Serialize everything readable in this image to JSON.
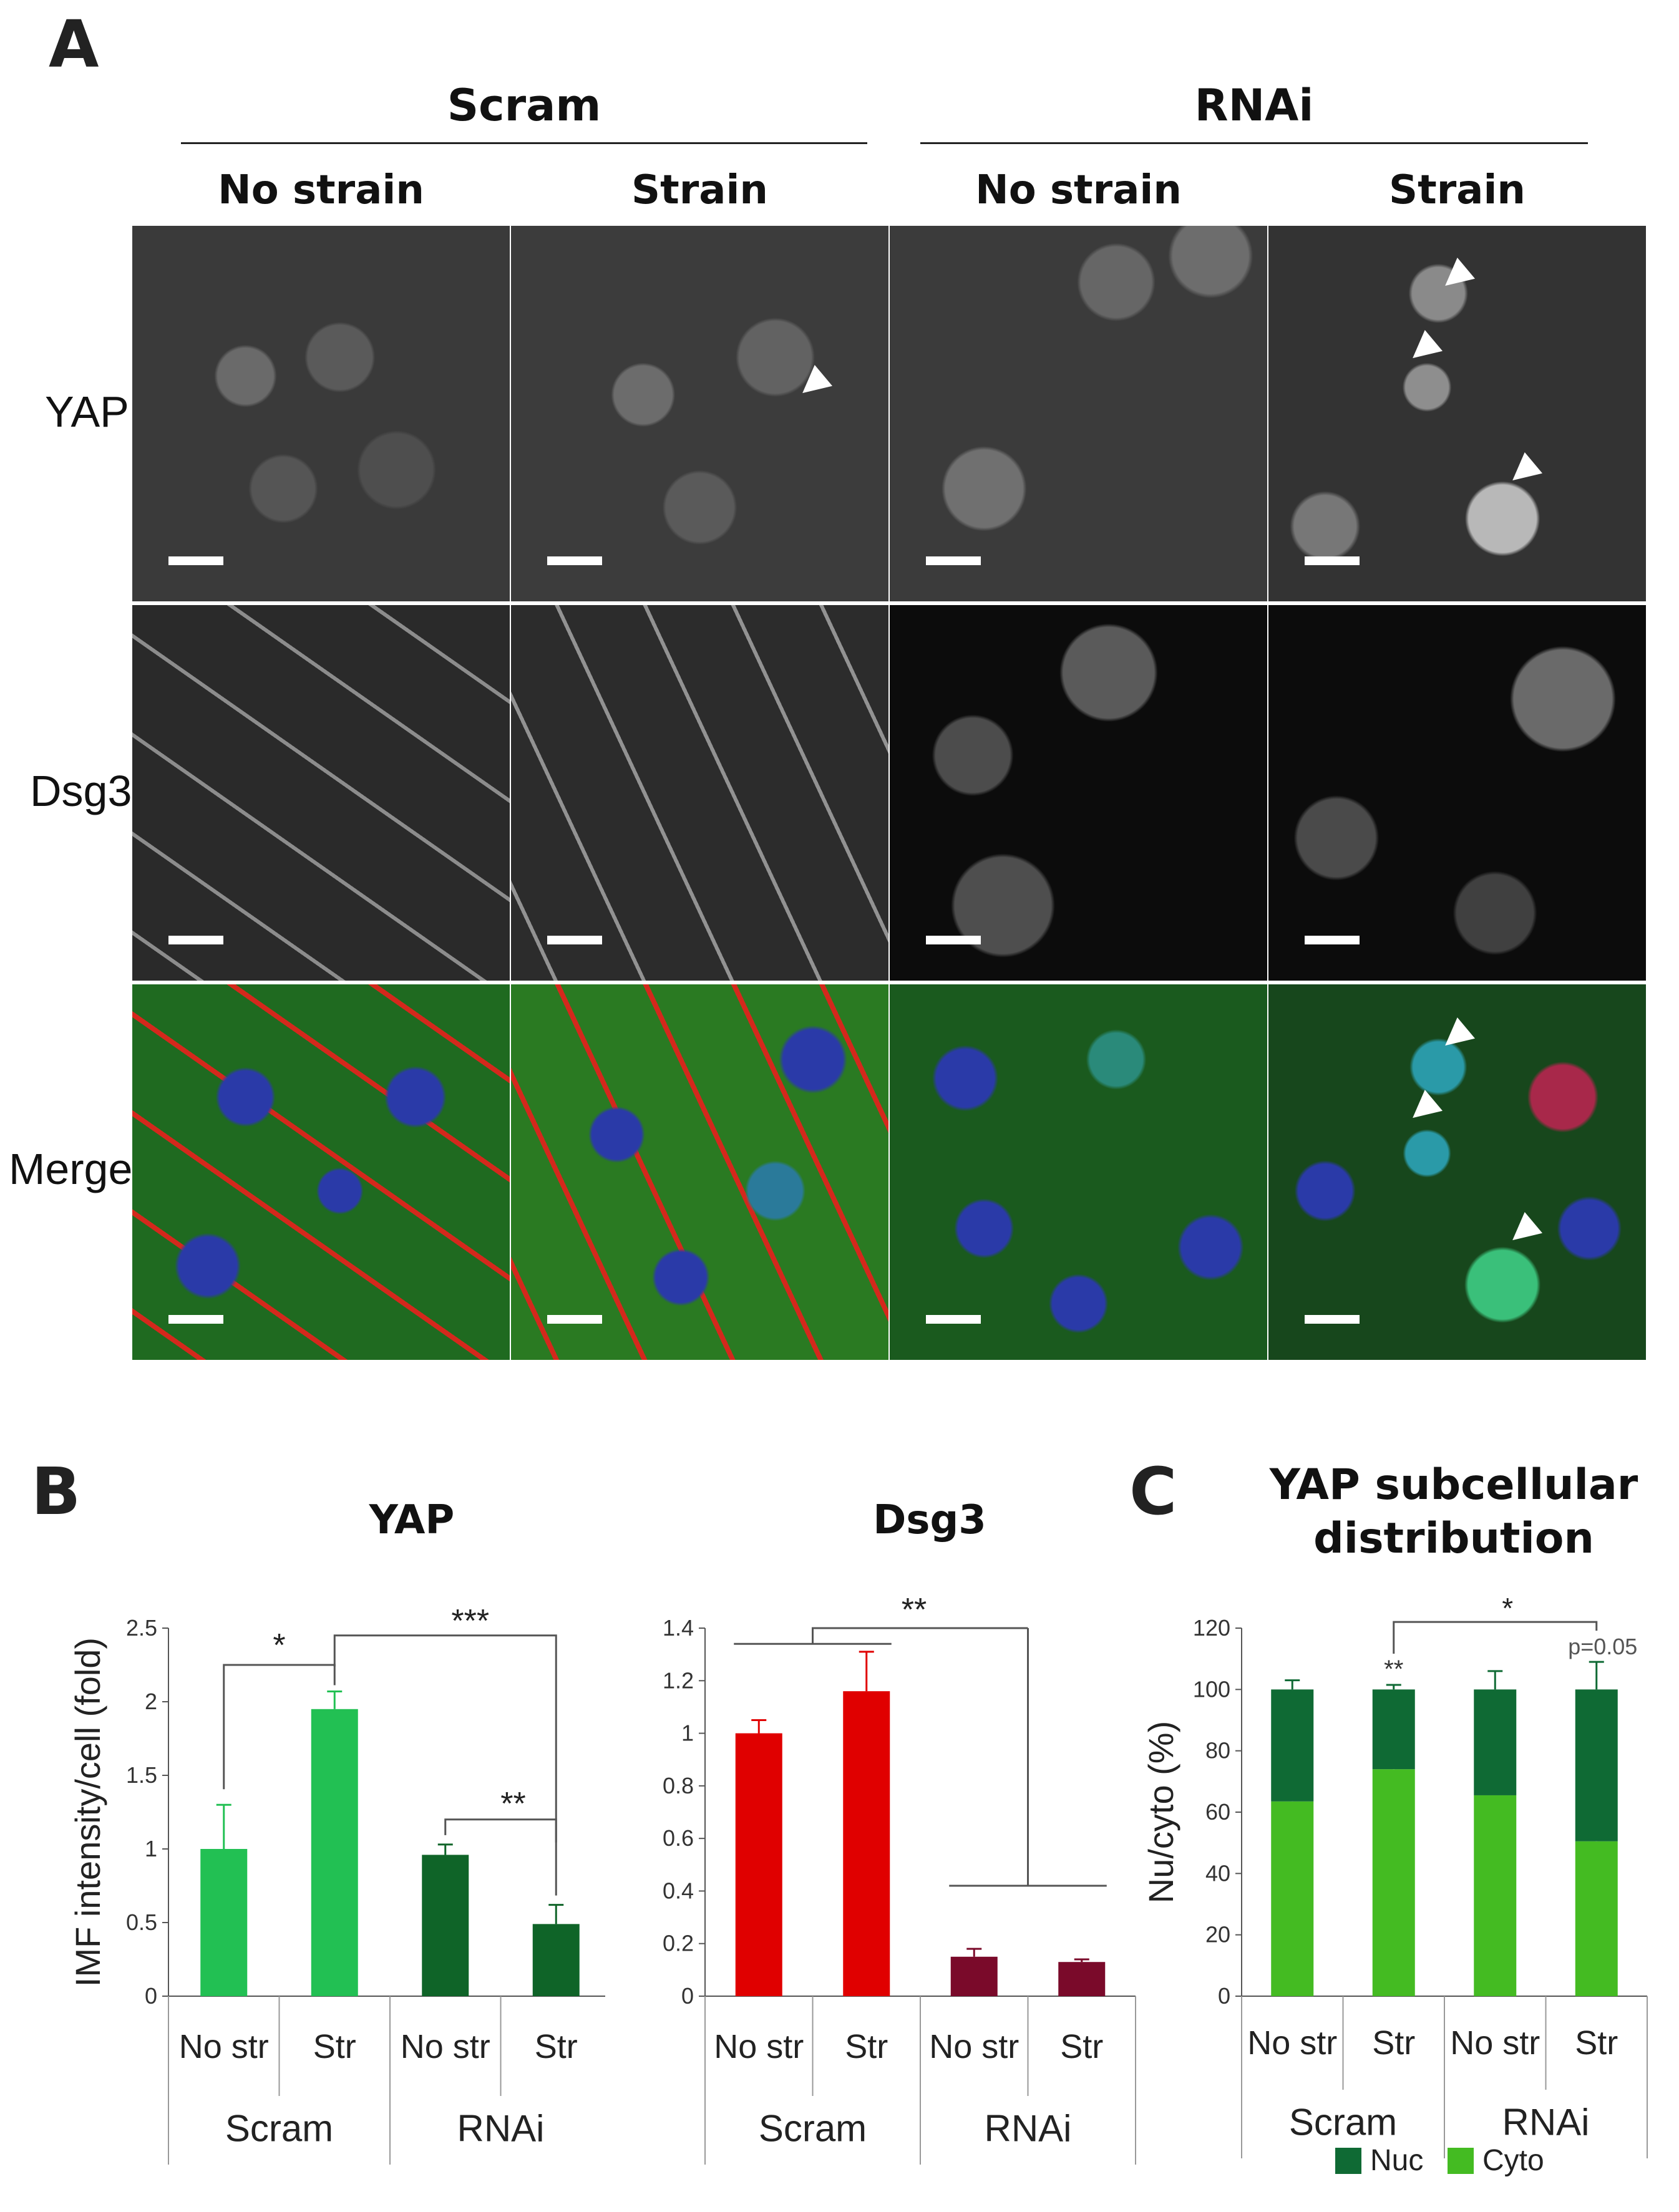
{
  "panel_a": {
    "letter": "A",
    "groups": [
      "Scram",
      "RNAi"
    ],
    "columns": [
      "No strain",
      "Strain",
      "No strain",
      "Strain"
    ],
    "rows": [
      "YAP",
      "Dsg3",
      "Merge"
    ]
  },
  "panel_b": {
    "letter": "B"
  },
  "panel_c": {
    "letter": "C"
  },
  "chart_data": [
    {
      "type": "bar",
      "title": "YAP",
      "ylabel": "IMF intensity/cell (fold)",
      "ylim": [
        0,
        2.5
      ],
      "yticks": [
        "0",
        "0.5",
        "1",
        "1.5",
        "2",
        "2.5"
      ],
      "categories": [
        "No str",
        "Str",
        "No str",
        "Str"
      ],
      "groups": [
        "Scram",
        "RNAi"
      ],
      "values": [
        1.0,
        1.95,
        0.96,
        0.49
      ],
      "errors": [
        0.3,
        0.12,
        0.07,
        0.13
      ],
      "colors": [
        "#22c053",
        "#22c053",
        "#0f6428",
        "#0f6428"
      ],
      "annotations": [
        "*",
        "***",
        "**"
      ]
    },
    {
      "type": "bar",
      "title": "Dsg3",
      "ylabel": "",
      "ylim": [
        0,
        1.4
      ],
      "yticks": [
        "0",
        "0.2",
        "0.4",
        "0.6",
        "0.8",
        "1",
        "1.2",
        "1.4"
      ],
      "categories": [
        "No str",
        "Str",
        "No str",
        "Str"
      ],
      "groups": [
        "Scram",
        "RNAi"
      ],
      "values": [
        1.0,
        1.16,
        0.15,
        0.13
      ],
      "errors": [
        0.05,
        0.15,
        0.03,
        0.01
      ],
      "colors": [
        "#e00000",
        "#e00000",
        "#7a0a2a",
        "#7a0a2a"
      ],
      "annotations": [
        "**"
      ]
    },
    {
      "type": "bar",
      "title": "YAP subcellular distribution",
      "ylabel": "Nu/cyto (%)",
      "ylim": [
        0,
        120
      ],
      "yticks": [
        "0",
        "20",
        "40",
        "60",
        "80",
        "100",
        "120"
      ],
      "categories": [
        "No str",
        "Str",
        "No str",
        "Str"
      ],
      "groups": [
        "Scram",
        "RNAi"
      ],
      "series": [
        {
          "name": "Cyto",
          "values": [
            63.5,
            74,
            65.5,
            50.5
          ],
          "errors": [
            2.5,
            1.5,
            5.5,
            8.5
          ],
          "color": "#44bb22"
        },
        {
          "name": "Nuc",
          "values": [
            36.5,
            26,
            34.5,
            49.5
          ],
          "errors": [
            3,
            1.5,
            6,
            9
          ],
          "color": "#0f6a34"
        }
      ],
      "legend": [
        "Nuc",
        "Cyto"
      ],
      "annotations": [
        "**",
        "*",
        "p=0.05"
      ]
    }
  ]
}
